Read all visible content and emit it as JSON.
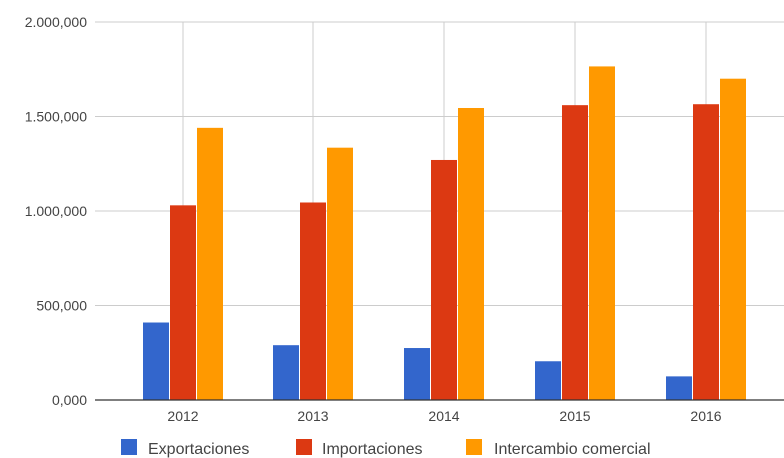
{
  "chart_data": {
    "type": "bar",
    "categories": [
      "2012",
      "2013",
      "2014",
      "2015",
      "2016"
    ],
    "series": [
      {
        "name": "Exportaciones",
        "color": "#3366CC",
        "values": [
          410000,
          290000,
          275000,
          205000,
          125000
        ]
      },
      {
        "name": "Importaciones",
        "color": "#DC3912",
        "values": [
          1030000,
          1045000,
          1270000,
          1560000,
          1565000
        ]
      },
      {
        "name": "Intercambio comercial",
        "color": "#FF9900",
        "values": [
          1440000,
          1335000,
          1545000,
          1765000,
          1700000
        ]
      }
    ],
    "ylim": [
      0,
      2000000
    ],
    "y_ticks": [
      0,
      500000,
      1000000,
      1500000,
      2000000
    ],
    "y_tick_labels": [
      "0,000",
      "500,000",
      "1.000,000",
      "1.500,000",
      "2.000,000"
    ],
    "grid": true,
    "legend_position": "bottom",
    "title": "",
    "xlabel": "",
    "ylabel": ""
  }
}
